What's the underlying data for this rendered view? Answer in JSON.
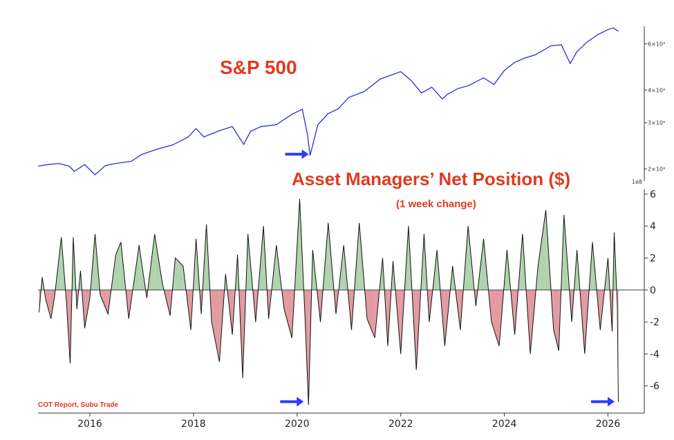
{
  "chart_data": [
    {
      "type": "line",
      "title": "S&P 500",
      "y_scale": "log",
      "y_ticks": [
        {
          "label": "6×10³",
          "value": 6000
        },
        {
          "label": "4×10³",
          "value": 4000
        },
        {
          "label": "3×10³",
          "value": 3000
        },
        {
          "label": "2×10³",
          "value": 2000
        }
      ],
      "ylim": [
        1800,
        7000
      ],
      "xlim": [
        2015.0,
        2026.7
      ],
      "series": [
        {
          "color": "#2b2bdc",
          "x": [
            2015.0,
            2015.2,
            2015.4,
            2015.6,
            2015.7,
            2015.9,
            2016.1,
            2016.3,
            2016.5,
            2016.8,
            2017.0,
            2017.3,
            2017.6,
            2017.9,
            2018.05,
            2018.2,
            2018.5,
            2018.75,
            2018.97,
            2019.1,
            2019.3,
            2019.6,
            2019.9,
            2020.1,
            2020.2,
            2020.25,
            2020.4,
            2020.6,
            2020.8,
            2021.0,
            2021.3,
            2021.6,
            2021.8,
            2022.0,
            2022.2,
            2022.4,
            2022.6,
            2022.8,
            2022.9,
            2023.1,
            2023.3,
            2023.6,
            2023.8,
            2024.0,
            2024.2,
            2024.4,
            2024.6,
            2024.9,
            2025.1,
            2025.27,
            2025.4,
            2025.6,
            2025.8,
            2026.0,
            2026.1,
            2026.2
          ],
          "y": [
            2050,
            2080,
            2100,
            2050,
            1960,
            2080,
            1900,
            2060,
            2100,
            2140,
            2270,
            2380,
            2470,
            2650,
            2850,
            2650,
            2800,
            2900,
            2480,
            2780,
            2900,
            2950,
            3230,
            3380,
            2700,
            2250,
            2950,
            3250,
            3400,
            3750,
            3950,
            4400,
            4550,
            4700,
            4350,
            3900,
            4100,
            3700,
            3850,
            4050,
            4150,
            4450,
            4200,
            4750,
            5100,
            5300,
            5450,
            5900,
            5950,
            5050,
            5600,
            6100,
            6500,
            6800,
            6900,
            6700
          ]
        }
      ],
      "annotations": [
        {
          "type": "arrow",
          "x": 2020.25,
          "y": 2250
        }
      ]
    },
    {
      "type": "area",
      "title": "Asset Managers’ Net Position ($)",
      "subtitle": "(1 week change)",
      "y_scale_label": "1e8",
      "y_ticks": [
        6,
        4,
        2,
        0,
        -2,
        -4,
        -6
      ],
      "ylim": [
        -7.7,
        6.3
      ],
      "xlim": [
        2015.0,
        2026.7
      ],
      "x_ticks": [
        "2016",
        "2018",
        "2020",
        "2022",
        "2024",
        "2026"
      ],
      "x_tick_values": [
        2016,
        2018,
        2020,
        2022,
        2024,
        2026
      ],
      "fill_positive": "#9cc89a",
      "fill_negative": "#d9828a",
      "line_color": "#111111",
      "series": [
        {
          "x": [
            2015.02,
            2015.08,
            2015.15,
            2015.25,
            2015.32,
            2015.45,
            2015.55,
            2015.62,
            2015.68,
            2015.75,
            2015.82,
            2015.9,
            2016.0,
            2016.1,
            2016.2,
            2016.35,
            2016.5,
            2016.6,
            2016.75,
            2016.85,
            2016.95,
            2017.1,
            2017.25,
            2017.4,
            2017.55,
            2017.65,
            2017.8,
            2017.95,
            2018.05,
            2018.15,
            2018.25,
            2018.35,
            2018.5,
            2018.62,
            2018.75,
            2018.85,
            2018.95,
            2019.05,
            2019.2,
            2019.35,
            2019.45,
            2019.6,
            2019.75,
            2019.9,
            2019.97,
            2020.05,
            2020.15,
            2020.22,
            2020.3,
            2020.45,
            2020.6,
            2020.75,
            2020.9,
            2021.05,
            2021.2,
            2021.35,
            2021.5,
            2021.65,
            2021.75,
            2021.85,
            2022.0,
            2022.15,
            2022.3,
            2022.45,
            2022.55,
            2022.7,
            2022.85,
            2023.0,
            2023.15,
            2023.3,
            2023.45,
            2023.6,
            2023.75,
            2023.9,
            2024.05,
            2024.2,
            2024.35,
            2024.5,
            2024.65,
            2024.8,
            2024.95,
            2025.05,
            2025.15,
            2025.3,
            2025.4,
            2025.55,
            2025.7,
            2025.85,
            2026.0,
            2026.08,
            2026.12,
            2026.18,
            2026.2
          ],
          "y": [
            -1.4,
            0.8,
            -0.6,
            -1.8,
            -0.4,
            3.3,
            -0.8,
            -4.6,
            3.3,
            -1.2,
            1.2,
            -2.4,
            -0.5,
            3.5,
            -0.3,
            -1.5,
            2.2,
            3.0,
            -1.8,
            0.5,
            2.8,
            -0.5,
            3.5,
            0.4,
            -1.6,
            2.0,
            1.5,
            -2.5,
            3.2,
            -1.5,
            4.1,
            -2.0,
            -4.5,
            1.0,
            -2.8,
            2.2,
            -5.5,
            3.5,
            -2.0,
            4.0,
            -1.8,
            2.8,
            -1.2,
            -3.0,
            1.0,
            5.7,
            -1.5,
            -7.2,
            2.5,
            -2.0,
            4.2,
            -1.5,
            2.8,
            -2.5,
            4.2,
            -1.8,
            -3.0,
            2.0,
            -3.5,
            1.8,
            -4.0,
            4.0,
            -5.0,
            3.5,
            -2.0,
            2.5,
            -3.5,
            1.5,
            -2.5,
            4.0,
            -1.0,
            3.2,
            -2.0,
            -3.5,
            2.5,
            -2.8,
            3.5,
            -4.0,
            1.5,
            5.0,
            -2.5,
            -3.8,
            4.7,
            -2.0,
            2.5,
            -4.0,
            3.0,
            -2.5,
            2.0,
            -2.6,
            3.6,
            -1.0,
            -7.0
          ]
        }
      ],
      "annotations": [
        {
          "type": "arrow",
          "x": 2020.18,
          "y": -6.9
        },
        {
          "type": "arrow",
          "x": 2026.18,
          "y": -6.9
        }
      ]
    }
  ],
  "source_label": "COT Report, Subu Trade"
}
